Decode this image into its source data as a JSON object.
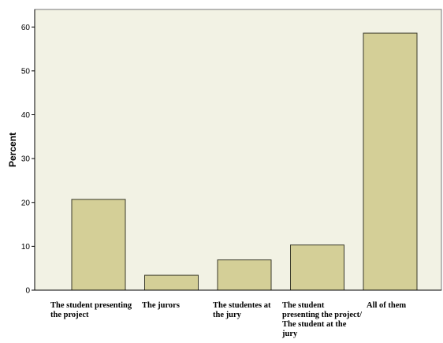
{
  "chart_data": {
    "type": "bar",
    "title": "",
    "xlabel": "",
    "ylabel": "Percent",
    "categories": [
      "The student presenting the project",
      "The jurors",
      "The studentes at the jury",
      "The student presenting the project/ The student at the jury",
      "All of them"
    ],
    "values": [
      20.7,
      3.4,
      6.9,
      10.3,
      58.6
    ],
    "ylim": [
      0,
      64
    ],
    "yticks": [
      "0",
      "10",
      "20",
      "30",
      "40",
      "50",
      "60"
    ],
    "grid": false,
    "legend": "none"
  },
  "colors": {
    "plot_background": "#f2f2e4",
    "bar_fill": "#d4cf97",
    "bar_stroke": "#3a3a2a",
    "axis": "#000000"
  }
}
